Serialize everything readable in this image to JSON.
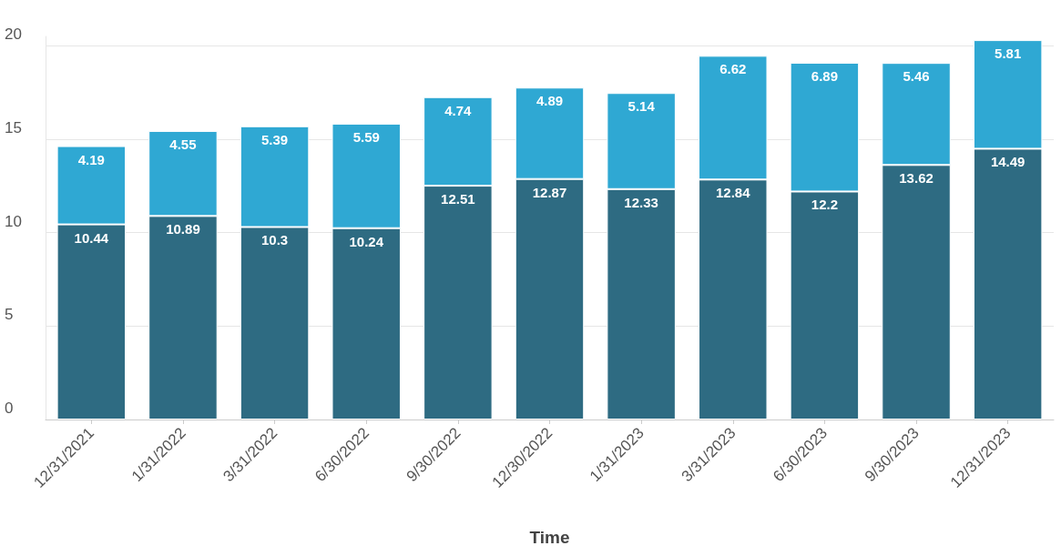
{
  "chart_data": {
    "type": "bar",
    "xlabel": "Time",
    "stacked": true,
    "data_labels": true,
    "grid": "y",
    "categories": [
      "12/31/2021",
      "1/31/2022",
      "3/31/2022",
      "6/30/2022",
      "9/30/2022",
      "12/30/2022",
      "1/31/2023",
      "3/31/2023",
      "6/30/2023",
      "9/30/2023",
      "12/31/2023"
    ],
    "series": [
      {
        "color": "#2e6b82",
        "values": [
          10.44,
          10.89,
          10.3,
          10.24,
          12.51,
          12.87,
          12.33,
          12.84,
          12.2,
          13.62,
          14.49
        ]
      },
      {
        "color": "#2fa8d3",
        "values": [
          4.19,
          4.55,
          5.39,
          5.59,
          4.74,
          4.89,
          5.14,
          6.62,
          6.89,
          5.46,
          5.81
        ]
      }
    ],
    "ylim": [
      0,
      20.5
    ],
    "yticks": [
      0,
      5,
      10,
      15,
      20
    ]
  }
}
